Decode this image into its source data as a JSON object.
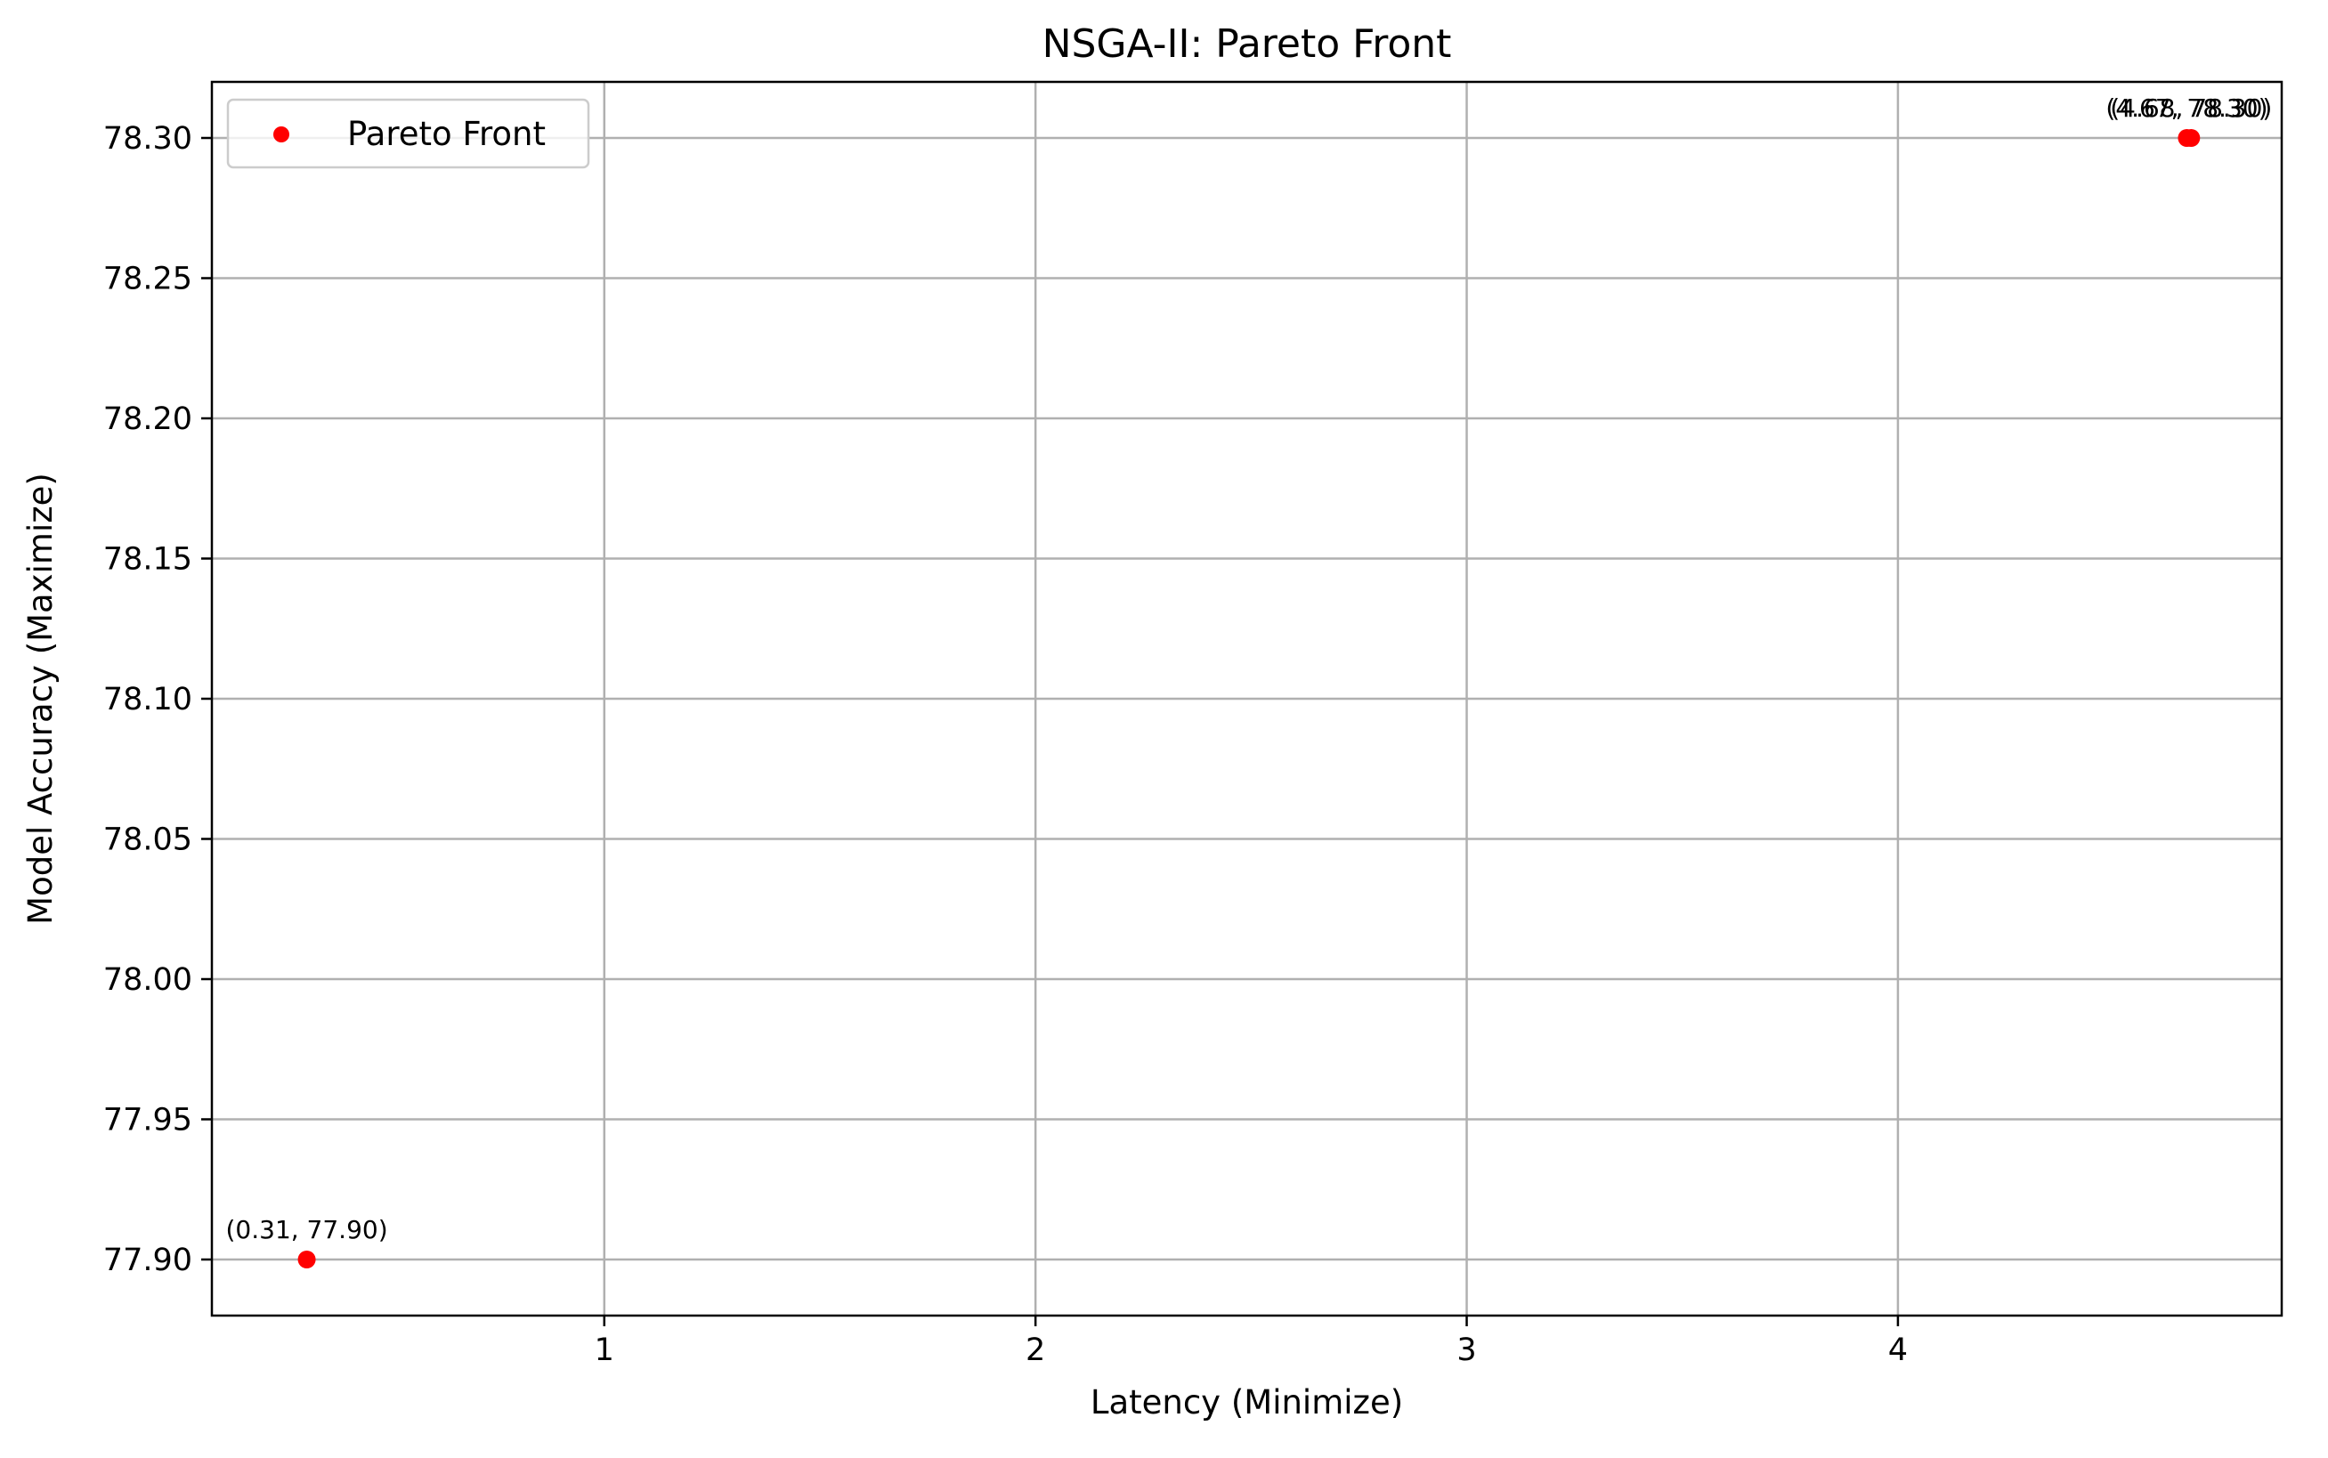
{
  "chart_data": {
    "type": "scatter",
    "title": "NSGA-II: Pareto Front",
    "xlabel": "Latency (Minimize)",
    "ylabel": "Model Accuracy (Maximize)",
    "xlim": [
      0.09,
      4.89
    ],
    "ylim": [
      77.88,
      78.32
    ],
    "xticks": [
      1,
      2,
      3,
      4
    ],
    "xtick_labels": [
      "1",
      "2",
      "3",
      "4"
    ],
    "yticks": [
      77.9,
      77.95,
      78.0,
      78.05,
      78.1,
      78.15,
      78.2,
      78.25,
      78.3
    ],
    "ytick_labels": [
      "77.90",
      "77.95",
      "78.00",
      "78.05",
      "78.10",
      "78.15",
      "78.20",
      "78.25",
      "78.30"
    ],
    "grid": true,
    "legend": {
      "position": "upper-left",
      "entries": [
        "Pareto Front"
      ]
    },
    "series": [
      {
        "name": "Pareto Front",
        "color": "#ff0000",
        "points": [
          {
            "x": 0.31,
            "y": 77.9,
            "label": "(0.31, 77.90)"
          },
          {
            "x": 4.68,
            "y": 78.3,
            "label": "(4.68, 78.30)"
          },
          {
            "x": 4.67,
            "y": 78.3,
            "label": "(4.67, 78.30)"
          }
        ]
      }
    ]
  }
}
